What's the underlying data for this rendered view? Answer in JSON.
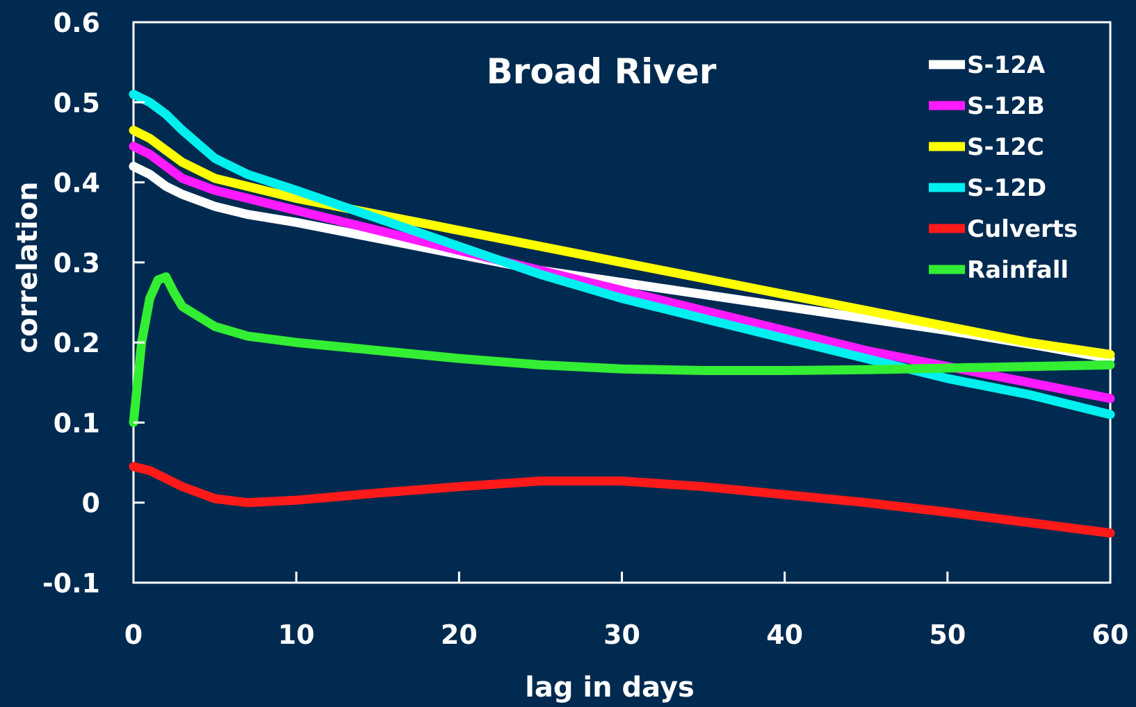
{
  "chart_data": {
    "type": "line",
    "title": "Broad River",
    "xlabel": "lag in days",
    "ylabel": "correlation",
    "xlim": [
      0,
      60
    ],
    "ylim": [
      -0.1,
      0.6
    ],
    "x_ticks": [
      0,
      10,
      20,
      30,
      40,
      50,
      60
    ],
    "y_ticks": [
      -0.1,
      0,
      0.1,
      0.2,
      0.3,
      0.4,
      0.5,
      0.6
    ],
    "y_tick_labels": [
      "-0.1",
      "0",
      "0.1",
      "0.2",
      "0.3",
      "0.4",
      "0.5",
      "0.6"
    ],
    "grid": false,
    "legend_position": "top-right",
    "background": "#002a50",
    "series": [
      {
        "name": "S-12A",
        "color": "#ffffff",
        "x": [
          0,
          1,
          2,
          3,
          5,
          7,
          10,
          15,
          20,
          25,
          30,
          35,
          40,
          45,
          50,
          55,
          60
        ],
        "y": [
          0.42,
          0.41,
          0.395,
          0.385,
          0.37,
          0.36,
          0.35,
          0.33,
          0.31,
          0.29,
          0.275,
          0.26,
          0.245,
          0.23,
          0.215,
          0.198,
          0.18
        ]
      },
      {
        "name": "S-12B",
        "color": "#ff1aff",
        "x": [
          0,
          1,
          2,
          3,
          5,
          7,
          10,
          15,
          20,
          25,
          30,
          35,
          40,
          45,
          50,
          55,
          60
        ],
        "y": [
          0.445,
          0.435,
          0.42,
          0.405,
          0.39,
          0.38,
          0.365,
          0.34,
          0.315,
          0.29,
          0.265,
          0.24,
          0.215,
          0.19,
          0.17,
          0.15,
          0.13
        ]
      },
      {
        "name": "S-12C",
        "color": "#ffff00",
        "x": [
          0,
          1,
          2,
          3,
          5,
          7,
          10,
          15,
          20,
          25,
          30,
          35,
          40,
          45,
          50,
          55,
          60
        ],
        "y": [
          0.465,
          0.455,
          0.44,
          0.425,
          0.405,
          0.395,
          0.38,
          0.36,
          0.34,
          0.32,
          0.3,
          0.28,
          0.26,
          0.24,
          0.22,
          0.2,
          0.185
        ]
      },
      {
        "name": "S-12D",
        "color": "#00f0f0",
        "x": [
          0,
          1,
          2,
          3,
          5,
          7,
          10,
          15,
          20,
          25,
          30,
          35,
          40,
          45,
          50,
          55,
          60
        ],
        "y": [
          0.51,
          0.5,
          0.485,
          0.465,
          0.43,
          0.41,
          0.39,
          0.355,
          0.32,
          0.285,
          0.255,
          0.23,
          0.205,
          0.18,
          0.155,
          0.135,
          0.11
        ]
      },
      {
        "name": "Culverts",
        "color": "#ff1a1a",
        "x": [
          0,
          1,
          2,
          3,
          5,
          7,
          10,
          15,
          20,
          25,
          30,
          35,
          40,
          45,
          50,
          55,
          60
        ],
        "y": [
          0.045,
          0.04,
          0.03,
          0.02,
          0.005,
          0.0,
          0.003,
          0.012,
          0.02,
          0.027,
          0.027,
          0.02,
          0.01,
          0.0,
          -0.012,
          -0.025,
          -0.038
        ]
      },
      {
        "name": "Rainfall",
        "color": "#33ee33",
        "x": [
          0,
          0.5,
          1,
          1.5,
          2,
          2.5,
          3,
          5,
          7,
          10,
          15,
          20,
          25,
          30,
          35,
          40,
          45,
          50,
          55,
          60
        ],
        "y": [
          0.1,
          0.2,
          0.255,
          0.278,
          0.282,
          0.262,
          0.245,
          0.22,
          0.208,
          0.2,
          0.19,
          0.18,
          0.172,
          0.167,
          0.165,
          0.165,
          0.166,
          0.168,
          0.17,
          0.172
        ]
      }
    ]
  }
}
